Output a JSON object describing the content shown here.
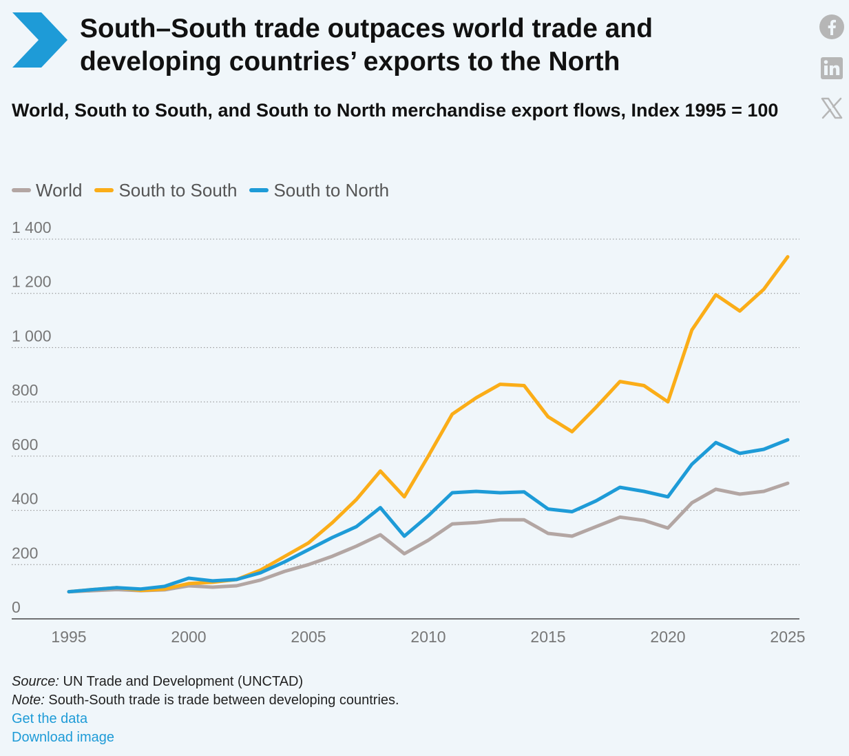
{
  "header": {
    "title": "South–South trade outpaces world trade and developing countries’ exports to the North",
    "subtitle": "World, South to South, and South to North merchandise export flows, Index 1995 = 100"
  },
  "share": {
    "icons": [
      "facebook-icon",
      "linkedin-icon",
      "x-icon"
    ]
  },
  "colors": {
    "background": "#f0f6fa",
    "logo": "#1e9bd7",
    "world": "#b3a6a3",
    "south_to_south": "#fbad18",
    "south_to_north": "#1e9bd7",
    "share_icons": "#b6b6b6",
    "link": "#1e9bd7"
  },
  "chart_data": {
    "type": "line",
    "title": "",
    "xlabel": "",
    "ylabel": "",
    "xlim": [
      1995,
      2025
    ],
    "ylim": [
      0,
      1400
    ],
    "x_ticks": [
      1995,
      2000,
      2005,
      2010,
      2015,
      2020,
      2025
    ],
    "y_ticks": [
      0,
      200,
      400,
      600,
      800,
      1000,
      1200,
      1400
    ],
    "y_tick_labels": [
      "0",
      "200",
      "400",
      "600",
      "800",
      "1 000",
      "1 200",
      "1 400"
    ],
    "grid": true,
    "legend_position": "top-left",
    "x": [
      1995,
      1996,
      1997,
      1998,
      1999,
      2000,
      2001,
      2002,
      2003,
      2004,
      2005,
      2006,
      2007,
      2008,
      2009,
      2010,
      2011,
      2012,
      2013,
      2014,
      2015,
      2016,
      2017,
      2018,
      2019,
      2020,
      2021,
      2022,
      2023,
      2024,
      2025
    ],
    "series": [
      {
        "name": "World",
        "values": [
          100,
          104,
          108,
          104,
          107,
          122,
          117,
          122,
          143,
          175,
          200,
          231,
          268,
          310,
          240,
          290,
          350,
          355,
          365,
          365,
          315,
          305,
          340,
          375,
          363,
          335,
          428,
          478,
          460,
          470,
          500
        ]
      },
      {
        "name": "South to South",
        "values": [
          100,
          108,
          115,
          105,
          110,
          130,
          135,
          145,
          180,
          230,
          280,
          355,
          440,
          545,
          450,
          600,
          755,
          815,
          865,
          860,
          745,
          690,
          780,
          875,
          860,
          800,
          1065,
          1195,
          1135,
          1215,
          1335
        ]
      },
      {
        "name": "South to North",
        "values": [
          100,
          108,
          115,
          110,
          120,
          150,
          140,
          145,
          170,
          210,
          255,
          300,
          340,
          410,
          305,
          380,
          465,
          470,
          465,
          468,
          405,
          395,
          435,
          485,
          470,
          450,
          570,
          650,
          610,
          625,
          660
        ]
      }
    ]
  },
  "footer": {
    "source_label": "Source:",
    "source_text": "UN Trade and Development (UNCTAD)",
    "note_label": "Note:",
    "note_text": "South-South trade is trade between developing countries.",
    "get_data_link": "Get the data",
    "download_link": "Download image"
  }
}
